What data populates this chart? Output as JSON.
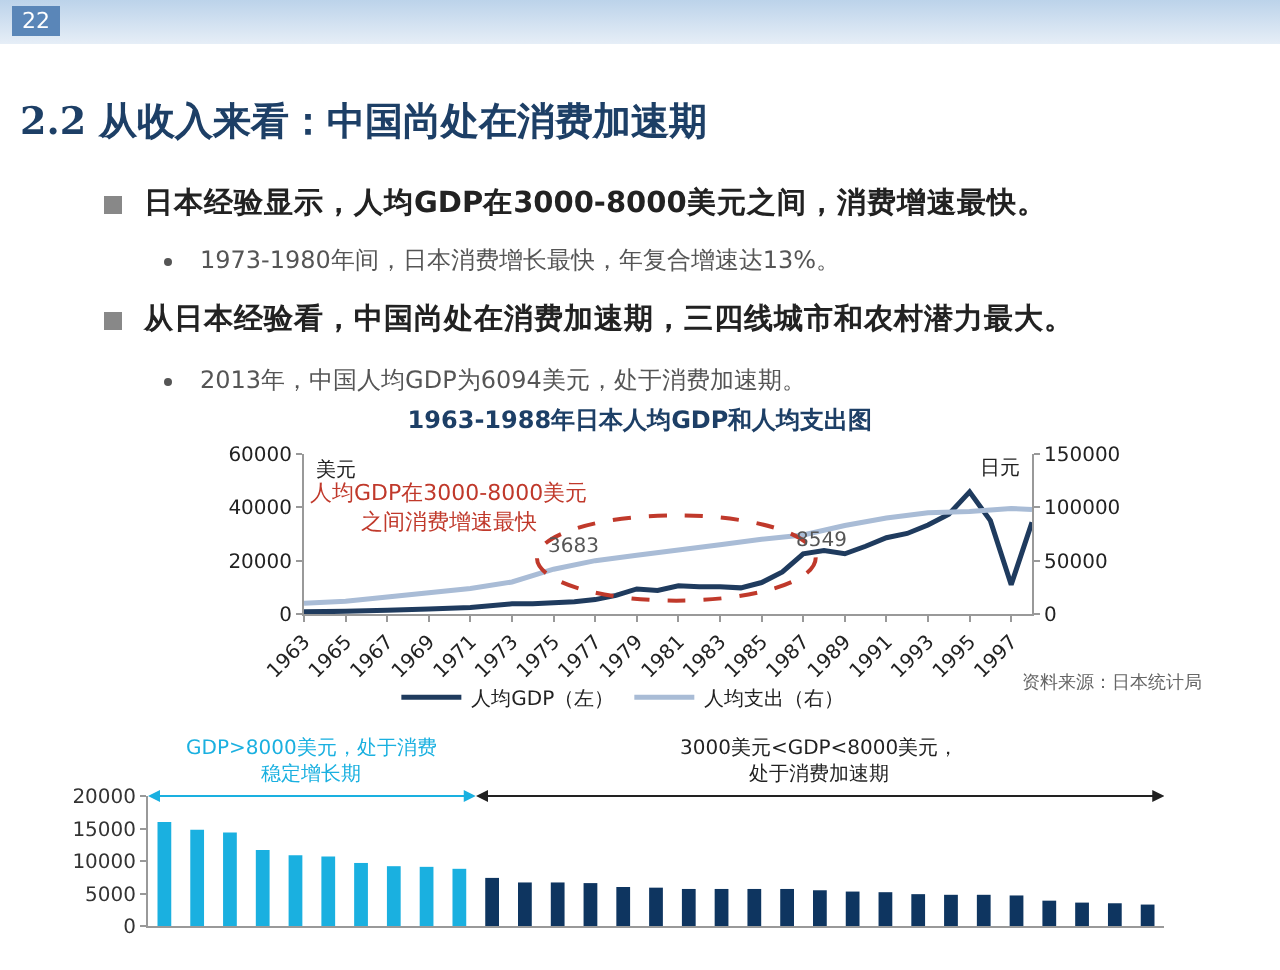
{
  "chart_data": [
    {
      "type": "other",
      "title": "2.2 从收入来看：中国尚处在消费加速期",
      "annotations": [
        "22",
        "日本经验显示，人均GDP在3000-8000美元之间，消费增速最快。",
        "1973-1980年间，日本消费增长最快，年复合增速达13%。",
        "从日本经验看，中国尚处在消费加速期，三四线城市和农村潜力最大。",
        "2013年，中国人均GDP为6094美元，处于消费加速期。"
      ]
    },
    {
      "type": "line",
      "title": "1963-1988年日本人均GDP和人均支出图",
      "ylabel": "美元",
      "y2label": "日元",
      "xlim": [
        1963,
        1998
      ],
      "xticks": [
        1963,
        1965,
        1967,
        1969,
        1971,
        1973,
        1975,
        1977,
        1979,
        1981,
        1983,
        1985,
        1987,
        1989,
        1991,
        1993,
        1995,
        1997
      ],
      "ylim": [
        0,
        60000
      ],
      "yticks": [
        0,
        20000,
        40000,
        60000
      ],
      "y2lim": [
        0,
        150000
      ],
      "y2ticks": [
        0,
        50000,
        100000,
        150000
      ],
      "series": [
        {
          "name": "人均GDP（左）",
          "color": "#1f3b5e",
          "x": [
            1963,
            1965,
            1967,
            1969,
            1971,
            1973,
            1974,
            1975,
            1976,
            1977,
            1978,
            1979,
            1980,
            1981,
            1982,
            1983,
            1984,
            1985,
            1986,
            1987,
            1988,
            1989,
            1990,
            1991,
            1992,
            1993,
            1994,
            1995,
            1996,
            1997,
            1998
          ],
          "values": [
            800,
            1000,
            1400,
            1900,
            2400,
            3800,
            3800,
            4200,
            4600,
            5400,
            7000,
            9400,
            8800,
            10600,
            10200,
            10200,
            9800,
            11800,
            15800,
            22600,
            23800,
            22600,
            25400,
            28600,
            30200,
            33400,
            37400,
            45800,
            35000,
            11000,
            34400
          ]
        },
        {
          "name": "人均支出（右）",
          "color": "#a9bcd6",
          "axis": "y2",
          "x": [
            1963,
            1965,
            1967,
            1969,
            1971,
            1973,
            1975,
            1977,
            1979,
            1981,
            1983,
            1985,
            1987,
            1989,
            1991,
            1993,
            1995,
            1997,
            1998
          ],
          "values": [
            10000,
            12000,
            16000,
            20000,
            24000,
            30000,
            42000,
            50000,
            55000,
            60000,
            65000,
            70000,
            74000,
            83000,
            90000,
            95000,
            96000,
            99000,
            98000
          ]
        }
      ],
      "annotations": [
        "人均GDP在3000-8000美元之间消费增速最快",
        "3683",
        "8549",
        "资料来源：日本统计局"
      ],
      "legend": "bottom",
      "grid": false
    },
    {
      "type": "bar",
      "categories": [
        null,
        null,
        null,
        null,
        null,
        null,
        null,
        null,
        null,
        null,
        null,
        null,
        null,
        null,
        null,
        null,
        null,
        null,
        null,
        null,
        null,
        null,
        null,
        null,
        null,
        null,
        null,
        null,
        null,
        null,
        null
      ],
      "values": [
        16000,
        14800,
        14400,
        11700,
        10900,
        10700,
        9700,
        9200,
        9100,
        8800,
        7400,
        6700,
        6700,
        6600,
        6000,
        5900,
        5700,
        5700,
        5700,
        5700,
        5500,
        5300,
        5200,
        4900,
        4800,
        4800,
        4700,
        3900,
        3600,
        3500,
        3300
      ],
      "colors": [
        "#1ab0e0",
        "#1ab0e0",
        "#1ab0e0",
        "#1ab0e0",
        "#1ab0e0",
        "#1ab0e0",
        "#1ab0e0",
        "#1ab0e0",
        "#1ab0e0",
        "#1ab0e0",
        "#0e3560",
        "#0e3560",
        "#0e3560",
        "#0e3560",
        "#0e3560",
        "#0e3560",
        "#0e3560",
        "#0e3560",
        "#0e3560",
        "#0e3560",
        "#0e3560",
        "#0e3560",
        "#0e3560",
        "#0e3560",
        "#0e3560",
        "#0e3560",
        "#0e3560",
        "#0e3560",
        "#0e3560",
        "#0e3560",
        "#0e3560"
      ],
      "ylim": [
        0,
        20000
      ],
      "yticks": [
        0,
        5000,
        10000,
        15000,
        20000
      ],
      "tick_labels": "y",
      "annotations": [
        "GDP>8000美元，处于消费稳定增长期",
        "3000美元<GDP<8000美元，处于消费加速期"
      ],
      "grid": false
    }
  ]
}
